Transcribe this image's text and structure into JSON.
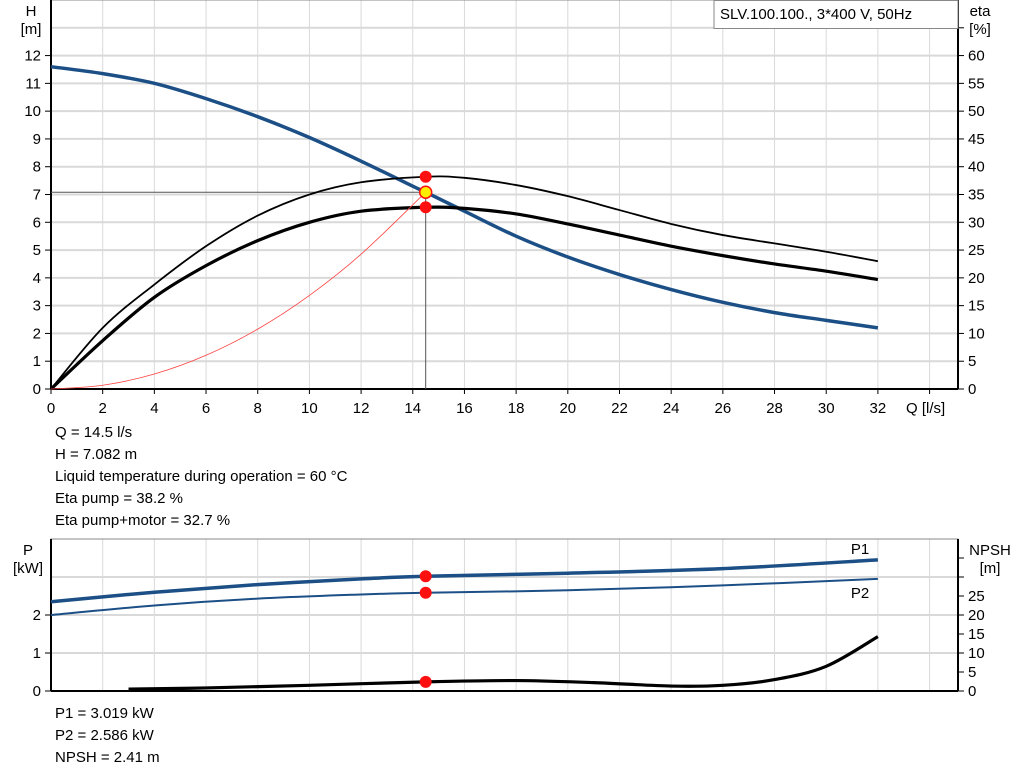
{
  "colors": {
    "head": "#1b4f86",
    "eta": "#000000",
    "system": "#ff4040",
    "marker": "#ff1010",
    "operating_marker": "#ffee00",
    "grid": "#d9d9d9"
  },
  "chart_data": [
    {
      "type": "line",
      "title": "SLV.100.100., 3*400 V, 50Hz",
      "xlabel": "Q [l/s]",
      "ylabel_left": [
        "H",
        "[m]"
      ],
      "ylabel_right": [
        "eta",
        "[%]"
      ],
      "xlim": [
        0,
        35.1
      ],
      "ylim_left": [
        0,
        14
      ],
      "ylim_right": [
        0,
        70
      ],
      "x_ticks": [
        "0",
        "2",
        "4",
        "6",
        "8",
        "10",
        "12",
        "14",
        "16",
        "18",
        "20",
        "22",
        "24",
        "26",
        "28",
        "30",
        "32"
      ],
      "y_ticks_left": [
        "0",
        "1",
        "2",
        "3",
        "4",
        "5",
        "6",
        "7",
        "8",
        "9",
        "10",
        "11",
        "12"
      ],
      "y_ticks_right": [
        "0",
        "5",
        "10",
        "15",
        "20",
        "25",
        "30",
        "35",
        "40",
        "45",
        "50",
        "55",
        "60"
      ],
      "grid": true,
      "series": [
        {
          "id": "head",
          "axis": "left",
          "x": [
            0,
            2,
            4,
            6,
            8,
            10,
            12,
            14,
            14.5,
            16,
            18,
            20,
            22,
            24,
            26,
            28,
            30,
            32
          ],
          "y": [
            11.6,
            11.35,
            11.0,
            10.45,
            9.8,
            9.05,
            8.2,
            7.3,
            7.082,
            6.4,
            5.5,
            4.75,
            4.12,
            3.58,
            3.12,
            2.75,
            2.47,
            2.2
          ]
        },
        {
          "id": "eta-pump",
          "axis": "right",
          "x": [
            0,
            2,
            4,
            6,
            8,
            10,
            12,
            14.5,
            16,
            18,
            20,
            22,
            24,
            26,
            28,
            30,
            32
          ],
          "y": [
            0,
            11,
            18.8,
            25.7,
            31.2,
            35,
            37.2,
            38.2,
            38,
            36.7,
            34.7,
            32.2,
            29.7,
            27.7,
            26.2,
            24.7,
            23
          ]
        },
        {
          "id": "eta-pump-motor",
          "axis": "right",
          "x": [
            0,
            2,
            4,
            6,
            8,
            10,
            12,
            14.5,
            16,
            18,
            20,
            22,
            24,
            26,
            28,
            30,
            32
          ],
          "y": [
            0,
            8.7,
            16.5,
            22.2,
            26.7,
            30,
            32,
            32.7,
            32.5,
            31.5,
            29.7,
            27.7,
            25.7,
            24,
            22.5,
            21.2,
            19.7
          ]
        },
        {
          "id": "system-curve",
          "axis": "left",
          "x": [
            0,
            2,
            4,
            6,
            8,
            10,
            12,
            14.5
          ],
          "y": [
            0,
            0.135,
            0.539,
            1.213,
            2.156,
            3.368,
            4.851,
            7.082
          ]
        }
      ],
      "operating_point": {
        "Q": 14.5,
        "H": 7.082,
        "eta_pump": 38.2,
        "eta_pump_motor": 32.7
      }
    },
    {
      "type": "line",
      "ylabel_left": [
        "P",
        "[kW]"
      ],
      "ylabel_right": [
        "NPSH",
        "[m]"
      ],
      "xlim": [
        0,
        35.1
      ],
      "ylim_left": [
        0,
        4
      ],
      "ylim_right": [
        0,
        40
      ],
      "y_ticks_left": [
        "0",
        "1",
        "2"
      ],
      "y_ticks_right": [
        "0",
        "5",
        "10",
        "15",
        "20",
        "25"
      ],
      "grid": true,
      "series": [
        {
          "id": "P1",
          "name": "P1",
          "axis": "left",
          "x": [
            0,
            4,
            8,
            12,
            14.5,
            20,
            26,
            32
          ],
          "y": [
            2.35,
            2.6,
            2.8,
            2.95,
            3.019,
            3.1,
            3.22,
            3.45
          ]
        },
        {
          "id": "P2",
          "name": "P2",
          "axis": "left",
          "x": [
            0,
            4,
            8,
            12,
            14.5,
            20,
            26,
            32
          ],
          "y": [
            2.0,
            2.25,
            2.43,
            2.54,
            2.586,
            2.65,
            2.78,
            2.95
          ]
        },
        {
          "id": "NPSH",
          "axis": "right",
          "x": [
            3,
            6,
            10,
            14.5,
            18,
            21,
            24,
            26,
            28,
            30,
            32
          ],
          "y": [
            0.5,
            0.8,
            1.5,
            2.41,
            2.75,
            2.2,
            1.3,
            1.5,
            3.0,
            6.5,
            14.3
          ]
        }
      ],
      "operating_point": {
        "Q": 14.5,
        "P1": 3.019,
        "P2": 2.586,
        "NPSH": 2.41
      }
    }
  ],
  "info_top": [
    "Q = 14.5 l/s",
    "H = 7.082 m",
    "Liquid temperature during operation = 60 °C",
    "Eta pump = 38.2 %",
    "Eta pump+motor = 32.7 %"
  ],
  "info_bottom": [
    "P1 = 3.019 kW",
    "P2 = 2.586 kW",
    "NPSH = 2.41 m"
  ]
}
